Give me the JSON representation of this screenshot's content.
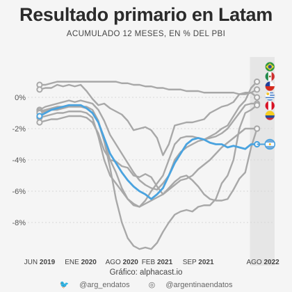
{
  "chart_data": {
    "type": "line",
    "title": "Resultado primario en Latam",
    "subtitle": "ACUMULADO 12 MESES, EN % DEL PBI",
    "ylim": [
      -10,
      2
    ],
    "yticks": [
      {
        "value": 0,
        "label": "0%"
      },
      {
        "value": -2,
        "label": "-2%"
      },
      {
        "value": -4,
        "label": "-4%"
      },
      {
        "value": -6,
        "label": "-6%"
      },
      {
        "value": -8,
        "label": "-8%"
      }
    ],
    "xticks": [
      {
        "x": 0,
        "prefix": "JUN",
        "year": "2019"
      },
      {
        "x": 7,
        "prefix": "ENE",
        "year": "2020"
      },
      {
        "x": 14,
        "prefix": "AGO",
        "year": "2020"
      },
      {
        "x": 20,
        "prefix": "FEB",
        "year": "2021"
      },
      {
        "x": 27,
        "prefix": "SEP",
        "year": "2021"
      },
      {
        "x": 38,
        "prefix": "AGO",
        "year": "2022"
      }
    ],
    "xlim": [
      -2,
      40
    ],
    "highlight_band": [
      35.8,
      40
    ],
    "highlight_color": "#4aa3df",
    "other_color": "#a8a8a8",
    "series": [
      {
        "values": [
          -0.8,
          -0.6,
          -0.5,
          -0.4,
          -0.3,
          -0.2,
          -0.3,
          -0.2,
          -0.3,
          -0.4,
          -0.8,
          -1.5,
          -2.4,
          -3.0,
          -3.6,
          -4.2,
          -4.8,
          -5.3,
          -5.6,
          -5.8,
          -5.9,
          -5.5,
          -5.0,
          -4.0,
          -3.5,
          -3.2,
          -3.0,
          -2.8,
          -2.7,
          -2.5,
          -2.3,
          -2.0,
          -1.8,
          -1.2,
          -0.6,
          -0.2,
          0.6,
          1.0
        ]
      },
      {
        "values": [
          0.8,
          0.8,
          0.9,
          1.0,
          1.0,
          1.0,
          1.0,
          1.0,
          1.0,
          1.0,
          1.0,
          1.0,
          1.0,
          1.0,
          0.9,
          0.9,
          0.8,
          0.8,
          0.7,
          0.7,
          0.6,
          0.6,
          0.5,
          0.5,
          0.5,
          0.4,
          0.4,
          0.4,
          0.3,
          0.3,
          0.3,
          0.3,
          0.3,
          0.3,
          0.2,
          0.2,
          0.3,
          0.5
        ]
      },
      {
        "values": [
          0.5,
          0.6,
          0.6,
          0.8,
          0.7,
          0.8,
          0.7,
          0.8,
          0.4,
          -0.1,
          -0.5,
          -0.4,
          -0.7,
          -0.9,
          -1.1,
          -1.5,
          -2.1,
          -2.0,
          -1.9,
          -2.1,
          -2.6,
          -3.7,
          -3.0,
          -1.8,
          -1.7,
          -1.6,
          -1.6,
          -1.5,
          -1.4,
          -1.0,
          -0.8,
          -0.6,
          -0.5,
          -0.3,
          0.2,
          0.3,
          0.3,
          0.0
        ]
      },
      {
        "values": [
          -0.9,
          -0.8,
          -0.7,
          -0.6,
          -0.6,
          -0.5,
          -0.5,
          -0.6,
          -0.6,
          -0.8,
          -1.5,
          -2.8,
          -4.0,
          -4.8,
          -5.8,
          -6.5,
          -6.8,
          -7.0,
          -6.6,
          -6.0,
          -5.5,
          -5.0,
          -4.0,
          -3.0,
          -2.6,
          -2.5,
          -2.5,
          -2.6,
          -2.7,
          -2.6,
          -2.5,
          -2.3,
          -2.0,
          -1.5,
          -1.0,
          -0.5,
          -0.4,
          -0.4
        ]
      },
      {
        "values": [
          -1.0,
          -0.9,
          -0.8,
          -0.8,
          -0.7,
          -0.6,
          -0.6,
          -0.6,
          -0.7,
          -1.0,
          -1.6,
          -2.8,
          -4.5,
          -6.5,
          -8.0,
          -9.0,
          -9.5,
          -9.7,
          -9.6,
          -9.7,
          -9.3,
          -8.6,
          -8.0,
          -7.5,
          -7.3,
          -7.2,
          -7.3,
          -7.0,
          -6.9,
          -6.9,
          -6.5,
          -5.5,
          -5.0,
          -4.0,
          -2.0,
          -1.0,
          -0.8,
          -0.5
        ]
      },
      {
        "values": [
          -1.3,
          -1.2,
          -1.1,
          -1.0,
          -1.0,
          -0.9,
          -0.9,
          -0.9,
          -1.0,
          -1.3,
          -2.5,
          -4.0,
          -5.0,
          -5.5,
          -6.0,
          -6.5,
          -6.9,
          -7.0,
          -6.8,
          -6.6,
          -6.4,
          -6.2,
          -5.8,
          -5.4,
          -5.1,
          -5.0,
          -5.3,
          -5.7,
          -6.2,
          -6.5,
          -6.6,
          -6.6,
          -6.5,
          -5.9,
          -5.2,
          -4.8,
          -3.2,
          -2.0
        ]
      },
      {
        "values": [
          -1.6,
          -1.5,
          -1.4,
          -1.4,
          -1.3,
          -1.2,
          -1.2,
          -1.2,
          -1.3,
          -1.6,
          -2.3,
          -3.4,
          -4.0,
          -4.1,
          -4.4,
          -4.5,
          -5.0,
          -5.1,
          -4.9,
          -5.1,
          -5.7,
          -6.2,
          -5.9,
          -5.6,
          -5.3,
          -5.2,
          -5.0,
          -4.6,
          -4.3,
          -4.0,
          -3.6,
          -3.2,
          -2.9,
          -2.6,
          -2.3,
          -2.0,
          -2.0,
          -2.0
        ]
      },
      {
        "highlight": true,
        "values": [
          -1.2,
          -1.0,
          -0.8,
          -0.7,
          -0.6,
          -0.5,
          -0.5,
          -0.5,
          -0.7,
          -1.0,
          -1.6,
          -2.6,
          -3.6,
          -4.2,
          -4.8,
          -5.3,
          -5.7,
          -6.0,
          -6.2,
          -6.5,
          -6.2,
          -5.8,
          -5.0,
          -4.2,
          -3.6,
          -3.0,
          -2.7,
          -2.6,
          -2.7,
          -2.9,
          -3.0,
          -3.0,
          -3.2,
          -3.1,
          -3.2,
          -3.3,
          -3.0,
          -3.0
        ]
      }
    ]
  },
  "footer": {
    "credit": "Gráfico: alphacast.io",
    "twitter": "@arg_endatos",
    "instagram": "@argentinaendatos"
  },
  "flags": [
    {
      "name": "brazil-flag-icon",
      "value": 1.0
    },
    {
      "name": "mexico-flag-icon",
      "value": 0.5
    },
    {
      "name": "chile-flag-icon",
      "value": 0.0
    },
    {
      "name": "uruguay-flag-icon",
      "value": -0.4
    },
    {
      "name": "peru-flag-icon",
      "value": -0.9
    },
    {
      "name": "colombia-flag-icon",
      "value": -1.9
    },
    {
      "name": "argentina-flag-icon",
      "value": -3.0
    }
  ]
}
